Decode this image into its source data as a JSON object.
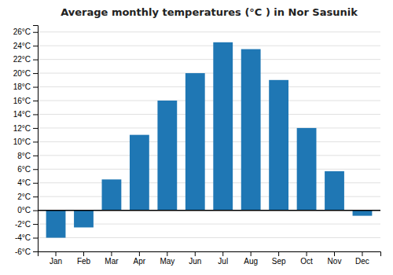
{
  "chart_data": {
    "type": "bar",
    "title": "Average monthly temperatures (°C ) in Nor Sasunik",
    "categories": [
      "Jan",
      "Feb",
      "Mar",
      "Apr",
      "May",
      "Jun",
      "Jul",
      "Aug",
      "Sep",
      "Oct",
      "Nov",
      "Dec"
    ],
    "values": [
      -4,
      -2.5,
      4.5,
      11,
      16,
      20,
      24.5,
      23.5,
      19,
      12,
      5.7,
      -0.8
    ],
    "ylim": [
      -6,
      27
    ],
    "yticks": [
      {
        "value": -6,
        "label": "-6°C"
      },
      {
        "value": -4,
        "label": "-4°C"
      },
      {
        "value": -2,
        "label": "-2°C"
      },
      {
        "value": 0,
        "label": "0°C"
      },
      {
        "value": 2,
        "label": "2°C"
      },
      {
        "value": 4,
        "label": "4°C"
      },
      {
        "value": 6,
        "label": "6°C"
      },
      {
        "value": 8,
        "label": "8°C"
      },
      {
        "value": 10,
        "label": "10°C"
      },
      {
        "value": 12,
        "label": "12°C"
      },
      {
        "value": 14,
        "label": "14°C"
      },
      {
        "value": 16,
        "label": "16°C"
      },
      {
        "value": 18,
        "label": "18°C"
      },
      {
        "value": 20,
        "label": "20°C"
      },
      {
        "value": 22,
        "label": "22°C"
      },
      {
        "value": 24,
        "label": "24°C"
      },
      {
        "value": 26,
        "label": "26°C"
      }
    ],
    "grid": true
  }
}
